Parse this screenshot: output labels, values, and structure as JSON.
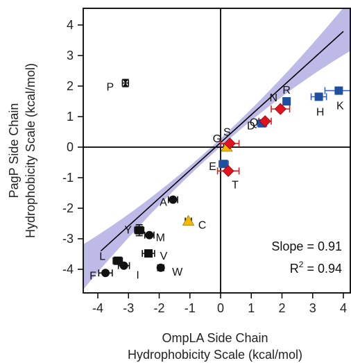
{
  "chart_data": {
    "type": "scatter",
    "xlabel_line1": "OmpLA Side Chain",
    "xlabel_line2": "Hydrophobicity Scale (kcal/mol)",
    "ylabel_line1": "PagP Side Chain",
    "ylabel_line2": "Hydrophobicity Scale (kcal/mol)",
    "xlim": [
      -4.5,
      4.2
    ],
    "ylim": [
      -4.5,
      4.6
    ],
    "x_ticks": [
      -4,
      -3,
      -2,
      -1,
      0,
      1,
      2,
      3,
      4
    ],
    "y_ticks": [
      -4,
      -3,
      -2,
      -1,
      0,
      1,
      2,
      3,
      4
    ],
    "zero_lines": true,
    "fit": {
      "slope": 0.91,
      "intercept": 0.15,
      "r2": 0.94,
      "band_color": "#a7a3e0",
      "line_color": "#000000"
    },
    "annotations": {
      "slope_text": "Slope = 0.91",
      "r2_prefix": "R",
      "r2_sup": "2",
      "r2_value": " = 0.94"
    },
    "colors": {
      "nonpolar": "#111111",
      "polar": "#e0141e",
      "charged": "#1f4fa0",
      "special": "#f5b800",
      "proline": "#111111",
      "error_bar": "#d42020",
      "error_bar_charged": "#3a62b8"
    },
    "points": [
      {
        "label": "P",
        "x": -3.1,
        "y": 2.1,
        "shape": "hourglass",
        "group": "proline",
        "xerr": 0.1
      },
      {
        "label": "A",
        "x": -1.55,
        "y": -1.72,
        "shape": "circle",
        "group": "nonpolar",
        "xerr": 0.15
      },
      {
        "label": "C",
        "x": -1.05,
        "y": -2.42,
        "shape": "triangle",
        "group": "special",
        "xerr": 0.1
      },
      {
        "label": "Y",
        "x": -2.65,
        "y": -2.72,
        "shape": "square",
        "group": "nonpolar",
        "xerr": 0.15,
        "yerr": 0.18
      },
      {
        "label": "M",
        "x": -2.32,
        "y": -2.88,
        "shape": "circle",
        "group": "nonpolar",
        "xerr": 0.15
      },
      {
        "label": "V",
        "x": -2.35,
        "y": -3.48,
        "shape": "square",
        "group": "nonpolar",
        "xerr": 0.2
      },
      {
        "label": "W",
        "x": -1.95,
        "y": -3.95,
        "shape": "circle",
        "group": "nonpolar",
        "xerr": 0.1
      },
      {
        "label": "L",
        "x": -3.35,
        "y": -3.72,
        "shape": "square",
        "group": "nonpolar",
        "xerr": 0.15
      },
      {
        "label": "I",
        "x": -3.15,
        "y": -3.88,
        "shape": "circle",
        "group": "nonpolar",
        "xerr": 0.18
      },
      {
        "label": "F",
        "x": -3.75,
        "y": -4.12,
        "shape": "circle",
        "group": "nonpolar",
        "xerr": 0.22
      },
      {
        "label": "G",
        "x": 0.2,
        "y": 0.0,
        "shape": "triangle",
        "group": "special",
        "xerr": 0.1
      },
      {
        "label": "S",
        "x": 0.3,
        "y": 0.12,
        "shape": "diamond",
        "group": "polar",
        "xerr": 0.3
      },
      {
        "label": "E",
        "x": 0.1,
        "y": -0.55,
        "shape": "square",
        "group": "charged",
        "xerr": 0.15
      },
      {
        "label": "T",
        "x": 0.25,
        "y": -0.78,
        "shape": "diamond",
        "group": "polar",
        "xerr": 0.35
      },
      {
        "label": "D",
        "x": 1.35,
        "y": 0.78,
        "shape": "square",
        "group": "charged",
        "xerr": 0.15
      },
      {
        "label": "Q",
        "x": 1.45,
        "y": 0.85,
        "shape": "diamond",
        "group": "polar",
        "xerr": 0.2
      },
      {
        "label": "N",
        "x": 1.95,
        "y": 1.25,
        "shape": "diamond",
        "group": "polar",
        "xerr": 0.3
      },
      {
        "label": "R",
        "x": 2.15,
        "y": 1.5,
        "shape": "square",
        "group": "charged",
        "xerr": 0.1
      },
      {
        "label": "H",
        "x": 3.2,
        "y": 1.65,
        "shape": "square",
        "group": "charged",
        "xerr": 0.25
      },
      {
        "label": "K",
        "x": 3.85,
        "y": 1.85,
        "shape": "square",
        "group": "charged",
        "xerr": 0.45
      }
    ]
  }
}
